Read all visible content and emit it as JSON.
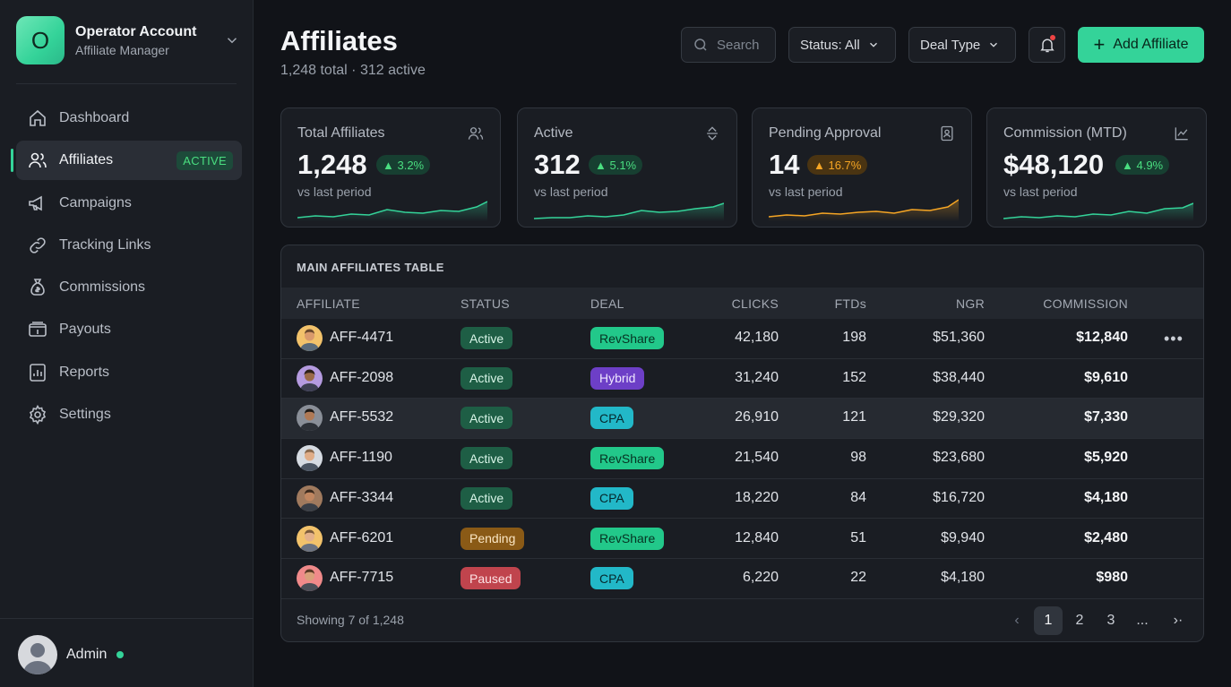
{
  "account": {
    "logo_letter": "O",
    "name": "Operator Account",
    "role": "Affiliate Manager"
  },
  "nav": {
    "items": [
      {
        "label": "Dashboard",
        "icon": "home-icon"
      },
      {
        "label": "Affiliates",
        "icon": "users-icon",
        "badge": "ACTIVE",
        "active": true
      },
      {
        "label": "Campaigns",
        "icon": "megaphone-icon"
      },
      {
        "label": "Tracking Links",
        "icon": "link-icon"
      },
      {
        "label": "Commissions",
        "icon": "money-bag-icon"
      },
      {
        "label": "Payouts",
        "icon": "wallet-icon"
      },
      {
        "label": "Reports",
        "icon": "report-icon"
      },
      {
        "label": "Settings",
        "icon": "gear-icon"
      }
    ]
  },
  "user": {
    "name": "Admin",
    "status_color": "#34d399"
  },
  "header": {
    "title": "Affiliates",
    "subtitle": "1,248 total · 312 active",
    "search_placeholder": "Search",
    "status_filter": "Status: All",
    "deal_filter": "Deal Type",
    "add_label": "Add Affiliate"
  },
  "kpis": [
    {
      "label": "Total Affiliates",
      "value": "1,248",
      "delta": "3.2%",
      "trend": "up",
      "compare": "vs last period",
      "icon": "users-icon",
      "color": "#34d399"
    },
    {
      "label": "Active",
      "value": "312",
      "delta": "5.1%",
      "trend": "up",
      "compare": "vs last period",
      "icon": "sort-icon",
      "color": "#34d399"
    },
    {
      "label": "Pending Approval",
      "value": "14",
      "delta": "16.7%",
      "trend": "up",
      "compare": "vs last period",
      "icon": "clipboard-icon",
      "color": "#f5a524"
    },
    {
      "label": "Commission (MTD)",
      "value": "$48,120",
      "delta": "4.9%",
      "trend": "up",
      "compare": "vs last period",
      "icon": "chart-icon",
      "color": "#34d399"
    }
  ],
  "table": {
    "title": "MAIN AFFILIATES TABLE",
    "columns": [
      "AFFILIATE",
      "STATUS",
      "DEAL",
      "CLICKS",
      "FTDs",
      "NGR",
      "COMMISSION"
    ],
    "rows": [
      {
        "id": "AFF-4471",
        "status": "Active",
        "deal": "RevShare",
        "clicks": "42,180",
        "ftds": "198",
        "ngr": "$51,360",
        "commission": "$12,840"
      },
      {
        "id": "AFF-2098",
        "status": "Active",
        "deal": "Hybrid",
        "clicks": "31,240",
        "ftds": "152",
        "ngr": "$38,440",
        "commission": "$9,610"
      },
      {
        "id": "AFF-5532",
        "status": "Active",
        "deal": "CPA",
        "clicks": "26,910",
        "ftds": "121",
        "ngr": "$29,320",
        "commission": "$7,330"
      },
      {
        "id": "AFF-1190",
        "status": "Active",
        "deal": "RevShare",
        "clicks": "21,540",
        "ftds": "98",
        "ngr": "$23,680",
        "commission": "$5,920"
      },
      {
        "id": "AFF-3344",
        "status": "Active",
        "deal": "CPA",
        "clicks": "18,220",
        "ftds": "84",
        "ngr": "$16,720",
        "commission": "$4,180"
      },
      {
        "id": "AFF-6201",
        "status": "Pending",
        "deal": "RevShare",
        "clicks": "12,840",
        "ftds": "51",
        "ngr": "$9,940",
        "commission": "$2,480"
      },
      {
        "id": "AFF-7715",
        "status": "Paused",
        "deal": "CPA",
        "clicks": "6,220",
        "ftds": "22",
        "ngr": "$4,180",
        "commission": "$980"
      }
    ],
    "row_menu": "•••",
    "showing": "Showing 7 of 1,248",
    "pages": [
      "1",
      "2",
      "3",
      "..."
    ],
    "current_page": "1",
    "prev": "‹",
    "next": "›·"
  }
}
